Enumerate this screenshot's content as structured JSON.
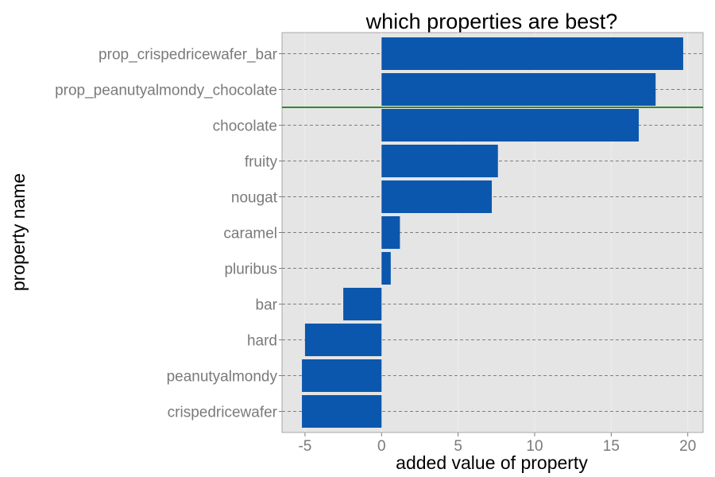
{
  "chart_data": {
    "type": "bar",
    "orientation": "horizontal",
    "title": "which properties are best?",
    "xlabel": "added value of property",
    "ylabel": "property name",
    "categories": [
      "prop_crispedricewafer_bar",
      "prop_peanutyalmondy_chocolate",
      "chocolate",
      "fruity",
      "nougat",
      "caramel",
      "pluribus",
      "bar",
      "hard",
      "peanutyalmondy",
      "crispedricewafer"
    ],
    "values": [
      19.7,
      17.9,
      16.8,
      7.6,
      7.2,
      1.2,
      0.6,
      -2.5,
      -5.0,
      -5.2,
      -5.2
    ],
    "xlim": [
      -6.5,
      21.0
    ],
    "xticks": [
      -5,
      0,
      5,
      10,
      15,
      20
    ],
    "xtick_labels": [
      "-5",
      "0",
      "5",
      "10",
      "15",
      "20"
    ],
    "reference_line": {
      "between": [
        "prop_peanutyalmondy_chocolate",
        "chocolate"
      ],
      "color": "#2e8b2e"
    },
    "grid": true,
    "legend": "none",
    "colors": {
      "bar": "#0b57ad",
      "panel": "#e5e5e5",
      "panel_border": "#a8a8a8",
      "gridline": "#7f7f7f",
      "reference_line": "#2e8b2e"
    }
  }
}
